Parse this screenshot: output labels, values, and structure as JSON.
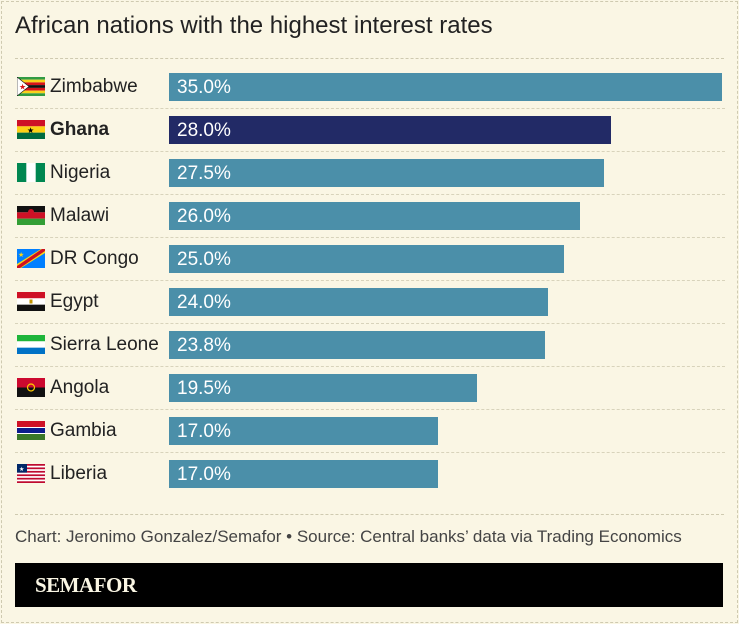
{
  "chart_data": {
    "type": "bar",
    "orientation": "horizontal",
    "title": "African nations with the highest interest rates",
    "categories": [
      "Zimbabwe",
      "Ghana",
      "Nigeria",
      "Malawi",
      "DR Congo",
      "Egypt",
      "Sierra Leone",
      "Angola",
      "Gambia",
      "Liberia"
    ],
    "values": [
      35.0,
      28.0,
      27.5,
      26.0,
      25.0,
      24.0,
      23.8,
      19.5,
      17.0,
      17.0
    ],
    "value_labels": [
      "35.0%",
      "28.0%",
      "27.5%",
      "26.0%",
      "25.0%",
      "24.0%",
      "23.8%",
      "19.5%",
      "17.0%",
      "17.0%"
    ],
    "highlight": "Ghana",
    "xlim": [
      0,
      35
    ],
    "grid": false,
    "colors": {
      "bar": "#4b8fa9",
      "highlight": "#222a66",
      "background": "#faf6e4"
    }
  },
  "footer": {
    "credit": "Chart: Jeronimo Gonzalez/Semafor • Source: Central banks’ data via Trading Economics",
    "brand": "SEMAFOR"
  }
}
